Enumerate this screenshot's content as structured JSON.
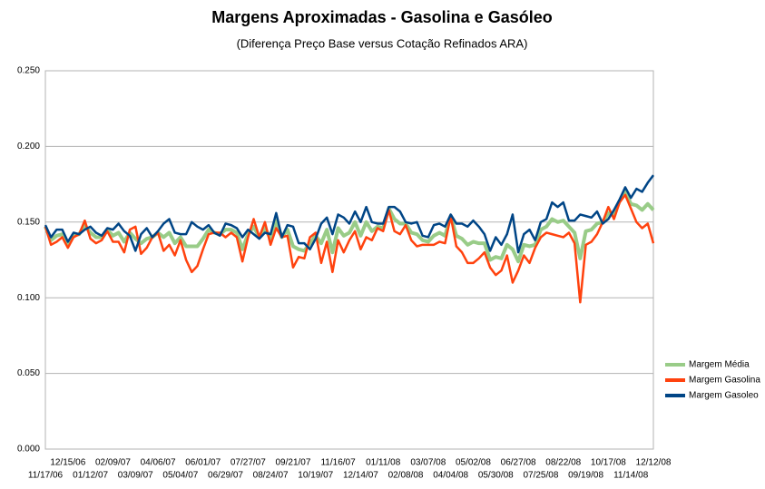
{
  "chart_data": {
    "type": "line",
    "title": "Margens Aproximadas - Gasolina e Gasóleo",
    "subtitle": "(Diferença Preço Base versus Cotação Refinados ARA)",
    "categories": [
      "11/17/06",
      null,
      null,
      null,
      "12/15/06",
      null,
      null,
      null,
      "01/12/07",
      null,
      null,
      null,
      "02/09/07",
      null,
      null,
      null,
      "03/09/07",
      null,
      null,
      null,
      "04/06/07",
      null,
      null,
      null,
      "05/04/07",
      null,
      null,
      null,
      "06/01/07",
      null,
      null,
      null,
      "06/29/07",
      null,
      null,
      null,
      "07/27/07",
      null,
      null,
      null,
      "08/24/07",
      null,
      null,
      null,
      "09/21/07",
      null,
      null,
      null,
      "10/19/07",
      null,
      null,
      null,
      "11/16/07",
      null,
      null,
      null,
      "12/14/07",
      null,
      null,
      null,
      "01/11/08",
      null,
      null,
      null,
      "02/08/08",
      null,
      null,
      null,
      "03/07/08",
      null,
      null,
      null,
      "04/04/08",
      null,
      null,
      null,
      "05/02/08",
      null,
      null,
      null,
      "05/30/08",
      null,
      null,
      null,
      "06/27/08",
      null,
      null,
      null,
      "07/25/08",
      null,
      null,
      null,
      "08/22/08",
      null,
      null,
      null,
      "09/19/08",
      null,
      null,
      null,
      "10/17/08",
      null,
      null,
      null,
      "11/14/08",
      null,
      null,
      null,
      "12/12/08"
    ],
    "series": [
      {
        "name": "Margem Média",
        "color": "#99cc88",
        "values": [
          0.147,
          0.138,
          0.141,
          0.142,
          0.135,
          0.141,
          0.142,
          0.148,
          0.143,
          0.14,
          0.14,
          0.145,
          0.141,
          0.143,
          0.137,
          0.143,
          0.139,
          0.136,
          0.139,
          0.14,
          0.143,
          0.14,
          0.143,
          0.136,
          0.14,
          0.134,
          0.134,
          0.134,
          0.139,
          0.145,
          0.143,
          0.142,
          0.145,
          0.145,
          0.143,
          0.132,
          0.142,
          0.147,
          0.14,
          0.146,
          0.139,
          0.151,
          0.14,
          0.145,
          0.134,
          0.132,
          0.131,
          0.136,
          0.141,
          0.136,
          0.145,
          0.13,
          0.146,
          0.141,
          0.143,
          0.15,
          0.141,
          0.15,
          0.144,
          0.147,
          0.146,
          0.159,
          0.152,
          0.149,
          0.149,
          0.143,
          0.142,
          0.138,
          0.137,
          0.141,
          0.143,
          0.141,
          0.154,
          0.141,
          0.139,
          0.135,
          0.137,
          0.136,
          0.136,
          0.125,
          0.127,
          0.126,
          0.135,
          0.132,
          0.124,
          0.135,
          0.134,
          0.135,
          0.145,
          0.147,
          0.152,
          0.15,
          0.151,
          0.147,
          0.143,
          0.126,
          0.144,
          0.145,
          0.149,
          0.15,
          0.156,
          0.155,
          0.164,
          0.17,
          0.162,
          0.161,
          0.158,
          0.162,
          0.158
        ]
      },
      {
        "name": "Margem Gasolina",
        "color": "#ff420e",
        "values": [
          0.147,
          0.135,
          0.137,
          0.14,
          0.133,
          0.14,
          0.142,
          0.151,
          0.139,
          0.136,
          0.138,
          0.144,
          0.137,
          0.137,
          0.13,
          0.145,
          0.147,
          0.129,
          0.133,
          0.14,
          0.143,
          0.131,
          0.135,
          0.128,
          0.138,
          0.125,
          0.117,
          0.121,
          0.132,
          0.142,
          0.143,
          0.143,
          0.14,
          0.143,
          0.14,
          0.124,
          0.14,
          0.152,
          0.14,
          0.15,
          0.135,
          0.146,
          0.14,
          0.141,
          0.12,
          0.127,
          0.126,
          0.14,
          0.143,
          0.123,
          0.137,
          0.117,
          0.138,
          0.13,
          0.138,
          0.144,
          0.132,
          0.14,
          0.138,
          0.146,
          0.144,
          0.158,
          0.144,
          0.142,
          0.148,
          0.138,
          0.134,
          0.135,
          0.135,
          0.135,
          0.137,
          0.136,
          0.154,
          0.134,
          0.13,
          0.123,
          0.123,
          0.126,
          0.13,
          0.12,
          0.115,
          0.118,
          0.128,
          0.11,
          0.118,
          0.128,
          0.123,
          0.133,
          0.14,
          0.143,
          0.142,
          0.141,
          0.14,
          0.143,
          0.136,
          0.097,
          0.135,
          0.137,
          0.142,
          0.15,
          0.16,
          0.152,
          0.163,
          0.168,
          0.159,
          0.15,
          0.146,
          0.149,
          0.136
        ]
      },
      {
        "name": "Margem Gasoleo",
        "color": "#004586",
        "values": [
          0.148,
          0.14,
          0.145,
          0.145,
          0.137,
          0.143,
          0.142,
          0.145,
          0.147,
          0.143,
          0.141,
          0.146,
          0.145,
          0.149,
          0.144,
          0.141,
          0.131,
          0.142,
          0.146,
          0.14,
          0.144,
          0.149,
          0.152,
          0.143,
          0.142,
          0.142,
          0.15,
          0.147,
          0.145,
          0.148,
          0.143,
          0.141,
          0.149,
          0.148,
          0.146,
          0.14,
          0.145,
          0.142,
          0.139,
          0.143,
          0.142,
          0.156,
          0.14,
          0.148,
          0.147,
          0.136,
          0.136,
          0.132,
          0.139,
          0.149,
          0.153,
          0.142,
          0.155,
          0.153,
          0.149,
          0.157,
          0.15,
          0.16,
          0.15,
          0.149,
          0.149,
          0.16,
          0.16,
          0.157,
          0.15,
          0.149,
          0.15,
          0.141,
          0.14,
          0.148,
          0.149,
          0.147,
          0.155,
          0.149,
          0.149,
          0.147,
          0.151,
          0.147,
          0.142,
          0.131,
          0.14,
          0.135,
          0.142,
          0.155,
          0.13,
          0.142,
          0.145,
          0.138,
          0.15,
          0.152,
          0.163,
          0.16,
          0.163,
          0.151,
          0.151,
          0.155,
          0.154,
          0.153,
          0.157,
          0.149,
          0.152,
          0.158,
          0.165,
          0.173,
          0.166,
          0.172,
          0.17,
          0.176,
          0.181
        ]
      }
    ],
    "ylim": [
      0,
      0.25
    ],
    "yticks": [
      {
        "value": 0,
        "label": "0.000"
      },
      {
        "value": 0.05,
        "label": "0.050"
      },
      {
        "value": 0.1,
        "label": "0.100"
      },
      {
        "value": 0.15,
        "label": "0.150"
      },
      {
        "value": 0.2,
        "label": "0.200"
      },
      {
        "value": 0.25,
        "label": "0.250"
      }
    ],
    "grid": true,
    "legend": "right"
  }
}
